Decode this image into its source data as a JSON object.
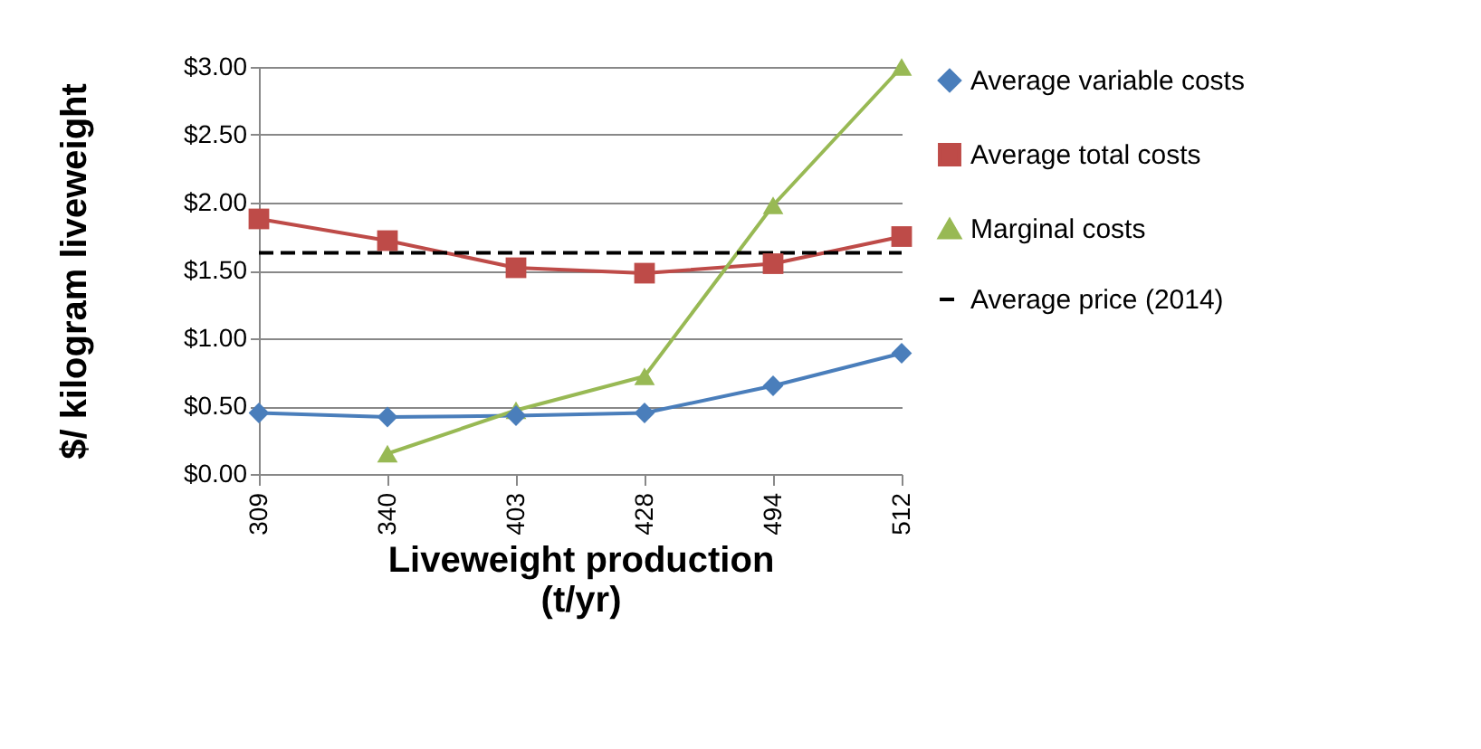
{
  "chart_data": {
    "type": "line",
    "xlabel": "Liveweight production (t/yr)",
    "ylabel": "$/ kilogram liveweight",
    "categories": [
      "309",
      "340",
      "403",
      "428",
      "494",
      "512"
    ],
    "series": [
      {
        "name": "Average variable costs",
        "color": "#4a7ebb",
        "marker": "diamond",
        "values": [
          0.45,
          0.42,
          0.43,
          0.45,
          0.65,
          0.89
        ]
      },
      {
        "name": "Average total costs",
        "color": "#be4b48",
        "marker": "square",
        "values": [
          1.88,
          1.72,
          1.52,
          1.48,
          1.55,
          1.75
        ]
      },
      {
        "name": "Marginal costs",
        "color": "#98b954",
        "marker": "triangle",
        "values": [
          null,
          0.15,
          0.47,
          0.72,
          1.98,
          3.0
        ]
      },
      {
        "name": "Average price (2014)",
        "color": "#000000",
        "marker": "none",
        "line_style": "dashed",
        "values": [
          1.63,
          1.63,
          1.63,
          1.63,
          1.63,
          1.63
        ]
      }
    ],
    "ylim": [
      0,
      3
    ],
    "yticks": [
      {
        "value": 0,
        "label": "$0.00"
      },
      {
        "value": 0.5,
        "label": "$0.50"
      },
      {
        "value": 1,
        "label": "$1.00"
      },
      {
        "value": 1.5,
        "label": "$1.50"
      },
      {
        "value": 2,
        "label": "$2.00"
      },
      {
        "value": 2.5,
        "label": "$2.50"
      },
      {
        "value": 3,
        "label": "$3.00"
      }
    ],
    "grid": "y",
    "legend": "right"
  }
}
